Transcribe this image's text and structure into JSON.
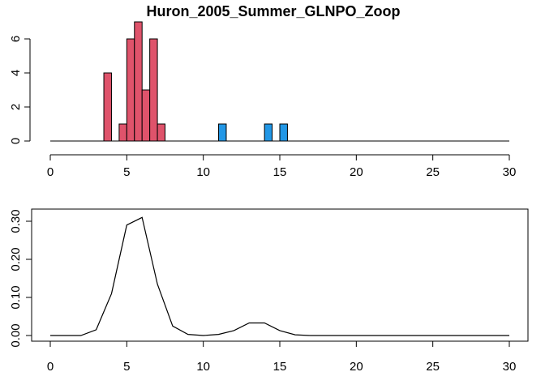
{
  "chart_data": [
    {
      "type": "bar",
      "title": "Huron_2005_Summer_GLNPO_Zoop",
      "xlabel": "",
      "ylabel": "",
      "xlim": [
        0,
        30
      ],
      "ylim": [
        0,
        7
      ],
      "x_ticks": [
        0,
        5,
        10,
        15,
        20,
        25,
        30
      ],
      "y_ticks": [
        0,
        2,
        4,
        6
      ],
      "grid": false,
      "legend": "none",
      "bin_width": 0.5,
      "bins": [
        {
          "x0": 3.5,
          "x1": 4.0,
          "count": 4,
          "group": "red"
        },
        {
          "x0": 4.5,
          "x1": 5.0,
          "count": 1,
          "group": "red"
        },
        {
          "x0": 5.0,
          "x1": 5.5,
          "count": 6,
          "group": "red"
        },
        {
          "x0": 5.5,
          "x1": 6.0,
          "count": 7,
          "group": "red"
        },
        {
          "x0": 6.0,
          "x1": 6.5,
          "count": 3,
          "group": "red"
        },
        {
          "x0": 6.5,
          "x1": 7.0,
          "count": 6,
          "group": "red"
        },
        {
          "x0": 7.0,
          "x1": 7.5,
          "count": 1,
          "group": "red"
        },
        {
          "x0": 11.0,
          "x1": 11.5,
          "count": 1,
          "group": "blue"
        },
        {
          "x0": 14.0,
          "x1": 14.5,
          "count": 1,
          "group": "blue"
        },
        {
          "x0": 15.0,
          "x1": 15.5,
          "count": 1,
          "group": "blue"
        }
      ],
      "colors": {
        "red": "#DF536B",
        "blue": "#2297E6",
        "baseline": "#000000"
      }
    },
    {
      "type": "line",
      "title": "",
      "xlabel": "",
      "ylabel": "",
      "xlim": [
        0,
        30
      ],
      "ylim": [
        0,
        0.32
      ],
      "x_ticks": [
        0,
        5,
        10,
        15,
        20,
        25,
        30
      ],
      "y_ticks": [
        "0.00",
        "0.10",
        "0.20",
        "0.30"
      ],
      "grid": false,
      "legend": "none",
      "x": [
        0,
        1,
        2,
        3,
        4,
        5,
        6,
        7,
        8,
        9,
        10,
        11,
        12,
        13,
        14,
        15,
        16,
        17,
        18,
        19,
        20,
        21,
        22,
        23,
        24,
        25,
        26,
        27,
        28,
        29,
        30
      ],
      "y": [
        0.0,
        0.0,
        0.0,
        0.015,
        0.11,
        0.29,
        0.31,
        0.135,
        0.025,
        0.003,
        0.0,
        0.003,
        0.013,
        0.033,
        0.033,
        0.013,
        0.002,
        0.0,
        0.0,
        0.0,
        0.0,
        0.0,
        0.0,
        0.0,
        0.0,
        0.0,
        0.0,
        0.0,
        0.0,
        0.0,
        0.0
      ],
      "colors": {
        "line": "#000000"
      }
    }
  ]
}
